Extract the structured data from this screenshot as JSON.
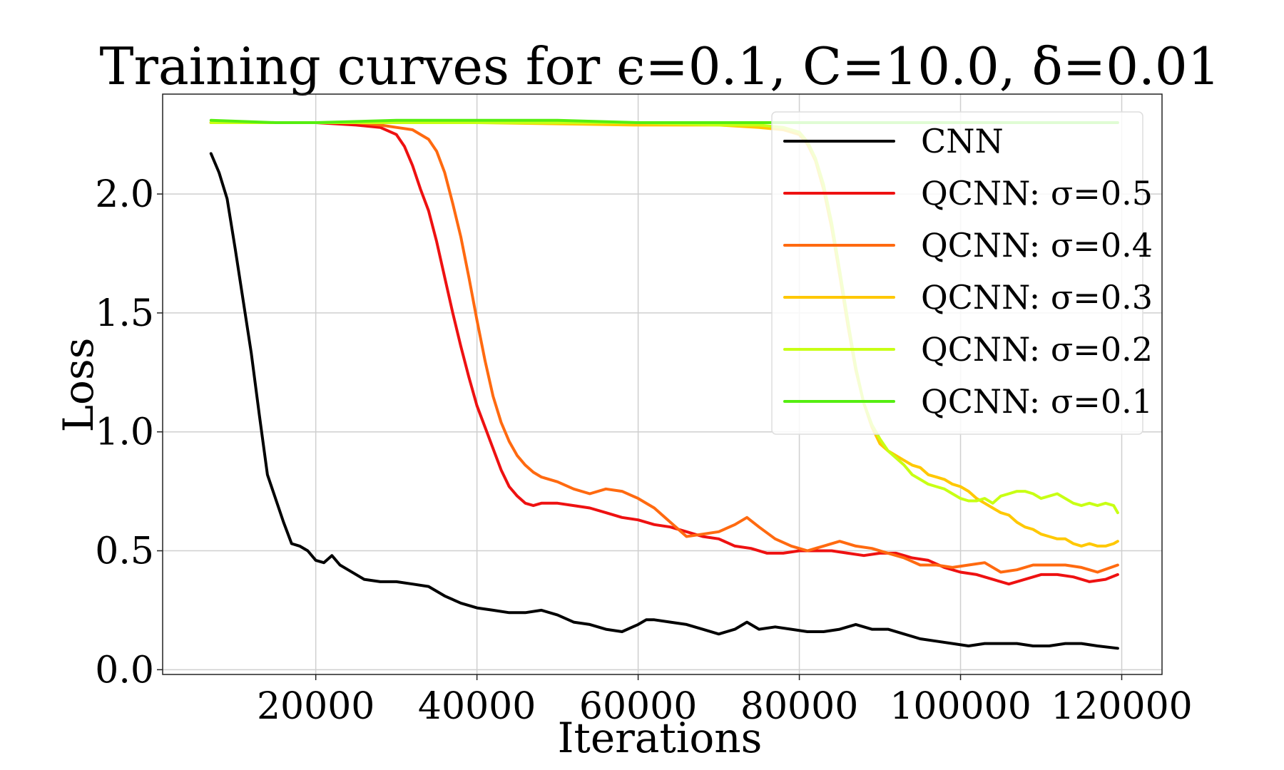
{
  "chart_data": {
    "type": "line",
    "title": "Training curves for ϵ=0.1, C=10.0, δ=0.01",
    "xlabel": "Iterations",
    "ylabel": "Loss",
    "xlim": [
      1000,
      125000
    ],
    "ylim": [
      -0.02,
      2.42
    ],
    "xticks": [
      20000,
      40000,
      60000,
      80000,
      100000,
      120000
    ],
    "yticks": [
      0.0,
      0.5,
      1.0,
      1.5,
      2.0
    ],
    "xtick_labels": [
      "20000",
      "40000",
      "60000",
      "80000",
      "100000",
      "120000"
    ],
    "ytick_labels": [
      "0.0",
      "0.5",
      "1.0",
      "1.5",
      "2.0"
    ],
    "grid": true,
    "legend_position": "top-right",
    "series": [
      {
        "name": "CNN",
        "color": "#000000",
        "x": [
          7000,
          8000,
          9000,
          10000,
          11000,
          12000,
          13000,
          14000,
          15000,
          16000,
          17000,
          18000,
          19000,
          20000,
          21000,
          22000,
          23000,
          24000,
          26000,
          28000,
          30000,
          32000,
          34000,
          36000,
          38000,
          40000,
          42000,
          44000,
          46000,
          48000,
          50000,
          52000,
          54000,
          56000,
          58000,
          60000,
          61000,
          62000,
          64000,
          66000,
          68000,
          70000,
          72000,
          73500,
          75000,
          77000,
          79000,
          81000,
          83000,
          85000,
          87000,
          89000,
          91000,
          93000,
          95000,
          97000,
          99000,
          101000,
          103000,
          105000,
          107000,
          109000,
          111000,
          113000,
          115000,
          117000,
          119500
        ],
        "values": [
          2.17,
          2.09,
          1.98,
          1.77,
          1.55,
          1.33,
          1.07,
          0.82,
          0.72,
          0.62,
          0.53,
          0.52,
          0.5,
          0.46,
          0.45,
          0.48,
          0.44,
          0.42,
          0.38,
          0.37,
          0.37,
          0.36,
          0.35,
          0.31,
          0.28,
          0.26,
          0.25,
          0.24,
          0.24,
          0.25,
          0.23,
          0.2,
          0.19,
          0.17,
          0.16,
          0.19,
          0.21,
          0.21,
          0.2,
          0.19,
          0.17,
          0.15,
          0.17,
          0.2,
          0.17,
          0.18,
          0.17,
          0.16,
          0.16,
          0.17,
          0.19,
          0.17,
          0.17,
          0.15,
          0.13,
          0.12,
          0.11,
          0.1,
          0.11,
          0.11,
          0.11,
          0.1,
          0.1,
          0.11,
          0.11,
          0.1,
          0.09
        ]
      },
      {
        "name": "QCNN: σ=0.5",
        "color": "#ee1111",
        "x": [
          7000,
          15000,
          20000,
          25000,
          28000,
          30000,
          31000,
          32000,
          33000,
          34000,
          35000,
          36000,
          37000,
          38000,
          39000,
          40000,
          41000,
          42000,
          43000,
          44000,
          45000,
          46000,
          47000,
          48000,
          50000,
          52000,
          54000,
          56000,
          58000,
          60000,
          62000,
          64000,
          66000,
          68000,
          70000,
          72000,
          74000,
          76000,
          78000,
          80000,
          82000,
          84000,
          86000,
          88000,
          90000,
          92000,
          94000,
          96000,
          98000,
          100000,
          102000,
          104000,
          106000,
          108000,
          110000,
          112000,
          114000,
          116000,
          118000,
          119500
        ],
        "values": [
          2.3,
          2.3,
          2.3,
          2.29,
          2.28,
          2.25,
          2.2,
          2.12,
          2.02,
          1.93,
          1.8,
          1.65,
          1.5,
          1.36,
          1.23,
          1.11,
          1.02,
          0.93,
          0.84,
          0.77,
          0.73,
          0.7,
          0.69,
          0.7,
          0.7,
          0.69,
          0.68,
          0.66,
          0.64,
          0.63,
          0.61,
          0.6,
          0.58,
          0.56,
          0.55,
          0.52,
          0.51,
          0.49,
          0.49,
          0.5,
          0.5,
          0.5,
          0.49,
          0.48,
          0.49,
          0.49,
          0.47,
          0.46,
          0.43,
          0.41,
          0.4,
          0.38,
          0.36,
          0.38,
          0.4,
          0.4,
          0.39,
          0.37,
          0.38,
          0.4
        ]
      },
      {
        "name": "QCNN: σ=0.4",
        "color": "#ff6a10",
        "x": [
          7000,
          15000,
          20000,
          25000,
          28000,
          30000,
          32000,
          34000,
          35000,
          36000,
          37000,
          38000,
          39000,
          40000,
          41000,
          42000,
          43000,
          44000,
          45000,
          46000,
          47000,
          48000,
          50000,
          52000,
          54000,
          56000,
          58000,
          60000,
          62000,
          64000,
          66000,
          68000,
          70000,
          72000,
          73500,
          75000,
          77000,
          79000,
          81000,
          83000,
          85000,
          87000,
          89000,
          91000,
          93000,
          95000,
          97000,
          99000,
          101000,
          103000,
          105000,
          107000,
          109000,
          111000,
          113000,
          115000,
          117000,
          119500
        ],
        "values": [
          2.3,
          2.3,
          2.3,
          2.3,
          2.29,
          2.28,
          2.27,
          2.23,
          2.18,
          2.09,
          1.96,
          1.82,
          1.65,
          1.47,
          1.3,
          1.15,
          1.04,
          0.96,
          0.9,
          0.86,
          0.83,
          0.81,
          0.79,
          0.76,
          0.74,
          0.76,
          0.75,
          0.72,
          0.68,
          0.62,
          0.56,
          0.57,
          0.58,
          0.61,
          0.64,
          0.6,
          0.55,
          0.52,
          0.5,
          0.52,
          0.54,
          0.52,
          0.51,
          0.49,
          0.47,
          0.44,
          0.44,
          0.43,
          0.44,
          0.45,
          0.41,
          0.42,
          0.44,
          0.44,
          0.44,
          0.43,
          0.41,
          0.44
        ]
      },
      {
        "name": "QCNN: σ=0.3",
        "color": "#ffc800",
        "x": [
          7000,
          20000,
          40000,
          60000,
          70000,
          75000,
          78000,
          80000,
          81000,
          82000,
          83000,
          84000,
          85000,
          86000,
          87000,
          88000,
          89000,
          90000,
          91000,
          92000,
          93000,
          94000,
          95000,
          96000,
          97000,
          98000,
          99000,
          100000,
          101000,
          102000,
          103000,
          104000,
          105000,
          106000,
          107000,
          108000,
          109000,
          110000,
          111000,
          112000,
          113000,
          114000,
          115000,
          116000,
          117000,
          118000,
          119000,
          119500
        ],
        "values": [
          2.3,
          2.3,
          2.3,
          2.29,
          2.29,
          2.28,
          2.27,
          2.25,
          2.21,
          2.14,
          2.02,
          1.86,
          1.66,
          1.45,
          1.26,
          1.12,
          1.02,
          0.95,
          0.92,
          0.9,
          0.88,
          0.86,
          0.85,
          0.82,
          0.81,
          0.8,
          0.78,
          0.77,
          0.75,
          0.72,
          0.7,
          0.68,
          0.66,
          0.65,
          0.62,
          0.6,
          0.59,
          0.57,
          0.56,
          0.55,
          0.55,
          0.53,
          0.52,
          0.53,
          0.52,
          0.52,
          0.53,
          0.54
        ]
      },
      {
        "name": "QCNN: σ=0.2",
        "color": "#c8ff14",
        "x": [
          7000,
          20000,
          40000,
          60000,
          70000,
          75000,
          78000,
          80000,
          81000,
          82000,
          83000,
          84000,
          85000,
          86000,
          87000,
          88000,
          89000,
          90000,
          91000,
          92000,
          93000,
          94000,
          95000,
          96000,
          97000,
          98000,
          99000,
          100000,
          101000,
          102000,
          103000,
          104000,
          105000,
          106000,
          107000,
          108000,
          109000,
          110000,
          111000,
          112000,
          113000,
          114000,
          115000,
          116000,
          117000,
          118000,
          119000,
          119500
        ],
        "values": [
          2.3,
          2.3,
          2.3,
          2.3,
          2.29,
          2.29,
          2.28,
          2.26,
          2.22,
          2.15,
          2.04,
          1.88,
          1.68,
          1.47,
          1.27,
          1.12,
          1.03,
          0.97,
          0.92,
          0.89,
          0.86,
          0.82,
          0.8,
          0.78,
          0.77,
          0.76,
          0.74,
          0.72,
          0.71,
          0.71,
          0.72,
          0.7,
          0.73,
          0.74,
          0.75,
          0.75,
          0.74,
          0.72,
          0.73,
          0.74,
          0.72,
          0.7,
          0.69,
          0.7,
          0.69,
          0.7,
          0.69,
          0.66
        ]
      },
      {
        "name": "QCNN: σ=0.1",
        "color": "#55ee11",
        "x": [
          7000,
          15000,
          20000,
          30000,
          40000,
          50000,
          60000,
          70000,
          75000,
          80000,
          85000,
          90000,
          95000,
          100000,
          105000,
          110000,
          115000,
          119500
        ],
        "values": [
          2.31,
          2.3,
          2.3,
          2.31,
          2.31,
          2.31,
          2.3,
          2.3,
          2.3,
          2.3,
          2.3,
          2.3,
          2.3,
          2.3,
          2.3,
          2.3,
          2.3,
          2.3
        ]
      }
    ]
  }
}
